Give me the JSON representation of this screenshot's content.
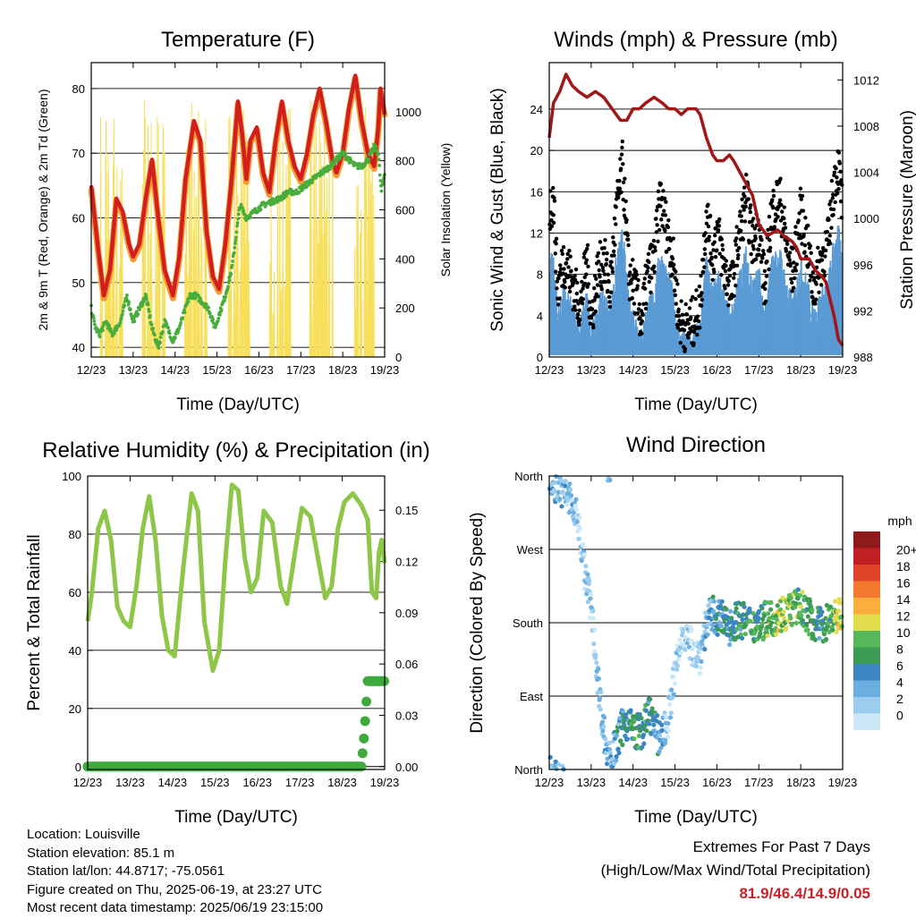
{
  "colors": {
    "temp2m": "#e8372b",
    "temp9m": "#d11f1f",
    "temp9m_orange": "#f59a2e",
    "dewpoint": "#49ad3c",
    "solar": "#f7df5a",
    "gust": "#000000",
    "wind": "#5a9bd4",
    "pressure": "#a11616",
    "rh": "#8dc649",
    "precip": "#3eaa3e"
  },
  "info": {
    "location": "Location: Louisville",
    "elevation": "Station elevation: 85.1 m",
    "latlon": "Station lat/lon: 44.8717; -75.0561",
    "created": "Figure created on Thu, 2025-06-19, at 23:27 UTC",
    "recent": "Most recent data timestamp: 2025/06/19 23:15:00"
  },
  "extremes": {
    "title": "Extremes For Past 7 Days",
    "subtitle": "(High/Low/Max Wind/Total Precipitation)",
    "values": "81.9/46.4/14.9/0.05"
  },
  "chart_data": [
    {
      "type": "line",
      "title": "Temperature (F)",
      "xlabel": "Time (Day/UTC)",
      "ylabel": "2m & 9m T (Red, Orange) & 2m Td (Green)",
      "y2label": "Solar Insolation (Yellow)",
      "x_ticks": [
        "12/23",
        "13/23",
        "14/23",
        "15/23",
        "16/23",
        "17/23",
        "18/23",
        "19/23"
      ],
      "xlim": [
        12,
        19
      ],
      "ylim": [
        38.5,
        84
      ],
      "y_ticks": [
        40,
        50,
        60,
        70,
        80
      ],
      "y2lim": [
        0,
        1200
      ],
      "y2_ticks": [
        0,
        200,
        400,
        600,
        800,
        1000
      ],
      "grid": "horizontal",
      "series": [
        {
          "axis": "y",
          "color_key": "temp9m",
          "width": 4.5,
          "x": [
            12.0,
            12.15,
            12.3,
            12.45,
            12.6,
            12.75,
            12.9,
            13.0,
            13.15,
            13.3,
            13.45,
            13.6,
            13.75,
            13.95,
            14.1,
            14.25,
            14.45,
            14.6,
            14.75,
            14.9,
            15.05,
            15.2,
            15.35,
            15.5,
            15.6,
            15.7,
            15.8,
            15.95,
            16.1,
            16.25,
            16.4,
            16.55,
            16.7,
            16.85,
            17.0,
            17.15,
            17.3,
            17.45,
            17.6,
            17.75,
            17.85,
            18.0,
            18.15,
            18.3,
            18.45,
            18.6,
            18.75,
            18.85,
            18.9,
            19.0
          ],
          "y": [
            65,
            56,
            48,
            52,
            63,
            61,
            56,
            54,
            56,
            63,
            69,
            60,
            52,
            48,
            54,
            66,
            75,
            72,
            58,
            51,
            49,
            56,
            66,
            78,
            73,
            66,
            72,
            74,
            67,
            64,
            72,
            78,
            72,
            68,
            66,
            70,
            76,
            80,
            75,
            69,
            67,
            70,
            77,
            82,
            75,
            70,
            68,
            74,
            80,
            76
          ]
        },
        {
          "axis": "y",
          "color_key": "dewpoint",
          "width": 3.5,
          "x": [
            12.0,
            12.1,
            12.2,
            12.35,
            12.5,
            12.7,
            12.85,
            13.0,
            13.15,
            13.3,
            13.45,
            13.6,
            13.75,
            13.95,
            14.1,
            14.2,
            14.35,
            14.5,
            14.65,
            14.8,
            14.95,
            15.1,
            15.2,
            15.35,
            15.45,
            15.55,
            15.7,
            15.9,
            16.1,
            16.3,
            16.5,
            16.7,
            16.9,
            17.1,
            17.3,
            17.5,
            17.7,
            17.85,
            18.0,
            18.15,
            18.3,
            18.45,
            18.6,
            18.75,
            18.85,
            18.92,
            19.0
          ],
          "y": [
            46,
            43,
            42,
            44,
            42,
            44,
            48,
            44,
            46,
            48,
            43,
            40,
            44,
            41,
            43,
            45,
            48,
            48,
            47,
            46,
            43,
            46,
            48,
            52,
            57,
            62,
            60,
            61,
            62,
            62.5,
            63,
            64,
            64,
            65,
            66,
            67,
            68,
            69,
            70,
            69,
            68,
            68,
            69,
            71,
            70,
            64,
            67
          ]
        }
      ]
    },
    {
      "type": "line",
      "title": "Winds (mph) & Pressure (mb)",
      "xlabel": "Time (Day/UTC)",
      "ylabel": "Sonic Wind & Gust (Blue, Black)",
      "y2label": "Station Pressure (Maroon)",
      "x_ticks": [
        "12/23",
        "13/23",
        "14/23",
        "15/23",
        "16/23",
        "17/23",
        "18/23",
        "19/23"
      ],
      "xlim": [
        12,
        19
      ],
      "ylim": [
        0,
        28.5
      ],
      "y_ticks": [
        0,
        4,
        8,
        12,
        16,
        20,
        24
      ],
      "y2lim": [
        988,
        1013.5
      ],
      "y2_ticks": [
        988,
        992,
        996,
        1000,
        1004,
        1008,
        1012
      ],
      "grid": "horizontal",
      "series": [
        {
          "axis": "y2",
          "color_key": "pressure",
          "width": 3.5,
          "x": [
            12.0,
            12.1,
            12.25,
            12.4,
            12.55,
            12.7,
            12.9,
            13.1,
            13.3,
            13.5,
            13.7,
            13.85,
            14.0,
            14.15,
            14.3,
            14.5,
            14.7,
            14.85,
            15.0,
            15.15,
            15.3,
            15.5,
            15.6,
            15.75,
            15.9,
            16.0,
            16.15,
            16.3,
            16.4,
            16.55,
            16.7,
            16.85,
            17.0,
            17.2,
            17.45,
            17.6,
            17.8,
            17.9,
            18.0,
            18.2,
            18.35,
            18.5,
            18.6,
            18.7,
            18.8,
            18.9,
            19.0
          ],
          "y": [
            1007,
            1010,
            1011,
            1012.5,
            1011.5,
            1011,
            1010.5,
            1011,
            1010.5,
            1009.5,
            1008.5,
            1008.5,
            1009.5,
            1009.5,
            1010,
            1010.5,
            1010,
            1009.5,
            1009.5,
            1009,
            1009.5,
            1009.5,
            1009,
            1007,
            1005.5,
            1005,
            1005,
            1005.5,
            1005,
            1004,
            1003,
            1002,
            999.5,
            998.5,
            999,
            998.5,
            998,
            997.5,
            996.5,
            996.5,
            995.5,
            995,
            994.5,
            993,
            991.5,
            989.5,
            989
          ]
        }
      ]
    },
    {
      "type": "line",
      "title": "Relative Humidity (%) & Precipitation (in)",
      "xlabel": "Time (Day/UTC)",
      "ylabel": "Percent & Total Rainfall",
      "x_ticks": [
        "12/23",
        "13/23",
        "14/23",
        "15/23",
        "16/23",
        "17/23",
        "18/23",
        "19/23"
      ],
      "xlim": [
        12,
        19
      ],
      "ylim": [
        -1,
        100
      ],
      "y_ticks": [
        0,
        20,
        40,
        60,
        80,
        100
      ],
      "y2lim": [
        -0.0017,
        0.17
      ],
      "y2_ticks": [
        "0.00",
        "0.03",
        "0.06",
        "0.09",
        "0.12",
        "0.15"
      ],
      "grid": "horizontal",
      "series": [
        {
          "axis": "y",
          "color_key": "rh",
          "width": 5,
          "x": [
            12.0,
            12.1,
            12.25,
            12.4,
            12.55,
            12.7,
            12.85,
            13.0,
            13.15,
            13.3,
            13.45,
            13.6,
            13.75,
            13.9,
            14.05,
            14.25,
            14.45,
            14.6,
            14.75,
            14.95,
            15.1,
            15.25,
            15.4,
            15.55,
            15.7,
            15.85,
            16.0,
            16.15,
            16.35,
            16.55,
            16.7,
            16.9,
            17.05,
            17.25,
            17.45,
            17.6,
            17.75,
            17.9,
            18.05,
            18.25,
            18.45,
            18.6,
            18.7,
            18.8,
            18.87,
            18.93,
            19.0
          ],
          "y": [
            50,
            60,
            82,
            88,
            78,
            55,
            50,
            48,
            62,
            82,
            93,
            78,
            52,
            40,
            38,
            68,
            94,
            88,
            50,
            33,
            40,
            72,
            97,
            95,
            72,
            60,
            65,
            88,
            84,
            62,
            56,
            75,
            89,
            86,
            70,
            58,
            62,
            82,
            91,
            94,
            90,
            85,
            60,
            58,
            74,
            78,
            70
          ]
        },
        {
          "axis": "y2",
          "color_key": "precip",
          "width": 11,
          "x": [
            12.0,
            18.45,
            18.5,
            18.55,
            18.6,
            19.0
          ],
          "y": [
            0,
            0,
            0.013,
            0.03,
            0.05,
            0.05
          ]
        }
      ]
    },
    {
      "type": "scatter",
      "title": "Wind Direction",
      "xlabel": "Time (Day/UTC)",
      "ylabel": "Direction (Colored By Speed)",
      "x_ticks": [
        "12/23",
        "13/23",
        "14/23",
        "15/23",
        "16/23",
        "17/23",
        "18/23",
        "19/23"
      ],
      "xlim": [
        12,
        19
      ],
      "ylim": [
        0,
        360
      ],
      "y_ticks": [
        {
          "label": "North",
          "value": 0
        },
        {
          "label": "East",
          "value": 90
        },
        {
          "label": "South",
          "value": 180
        },
        {
          "label": "West",
          "value": 270
        },
        {
          "label": "North",
          "value": 360
        }
      ],
      "grid": "horizontal",
      "colorbar": {
        "unit": "mph",
        "labels": [
          "0",
          "2",
          "4",
          "6",
          "8",
          "10",
          "12",
          "14",
          "16",
          "18",
          "20+"
        ],
        "colors": [
          "#cde8f7",
          "#9ccdee",
          "#6baee0",
          "#3b86c2",
          "#3b9b54",
          "#56b85a",
          "#e1dd4c",
          "#fbae3d",
          "#f37a2f",
          "#e0452c",
          "#c11f24",
          "#8e1a1c"
        ]
      }
    }
  ]
}
